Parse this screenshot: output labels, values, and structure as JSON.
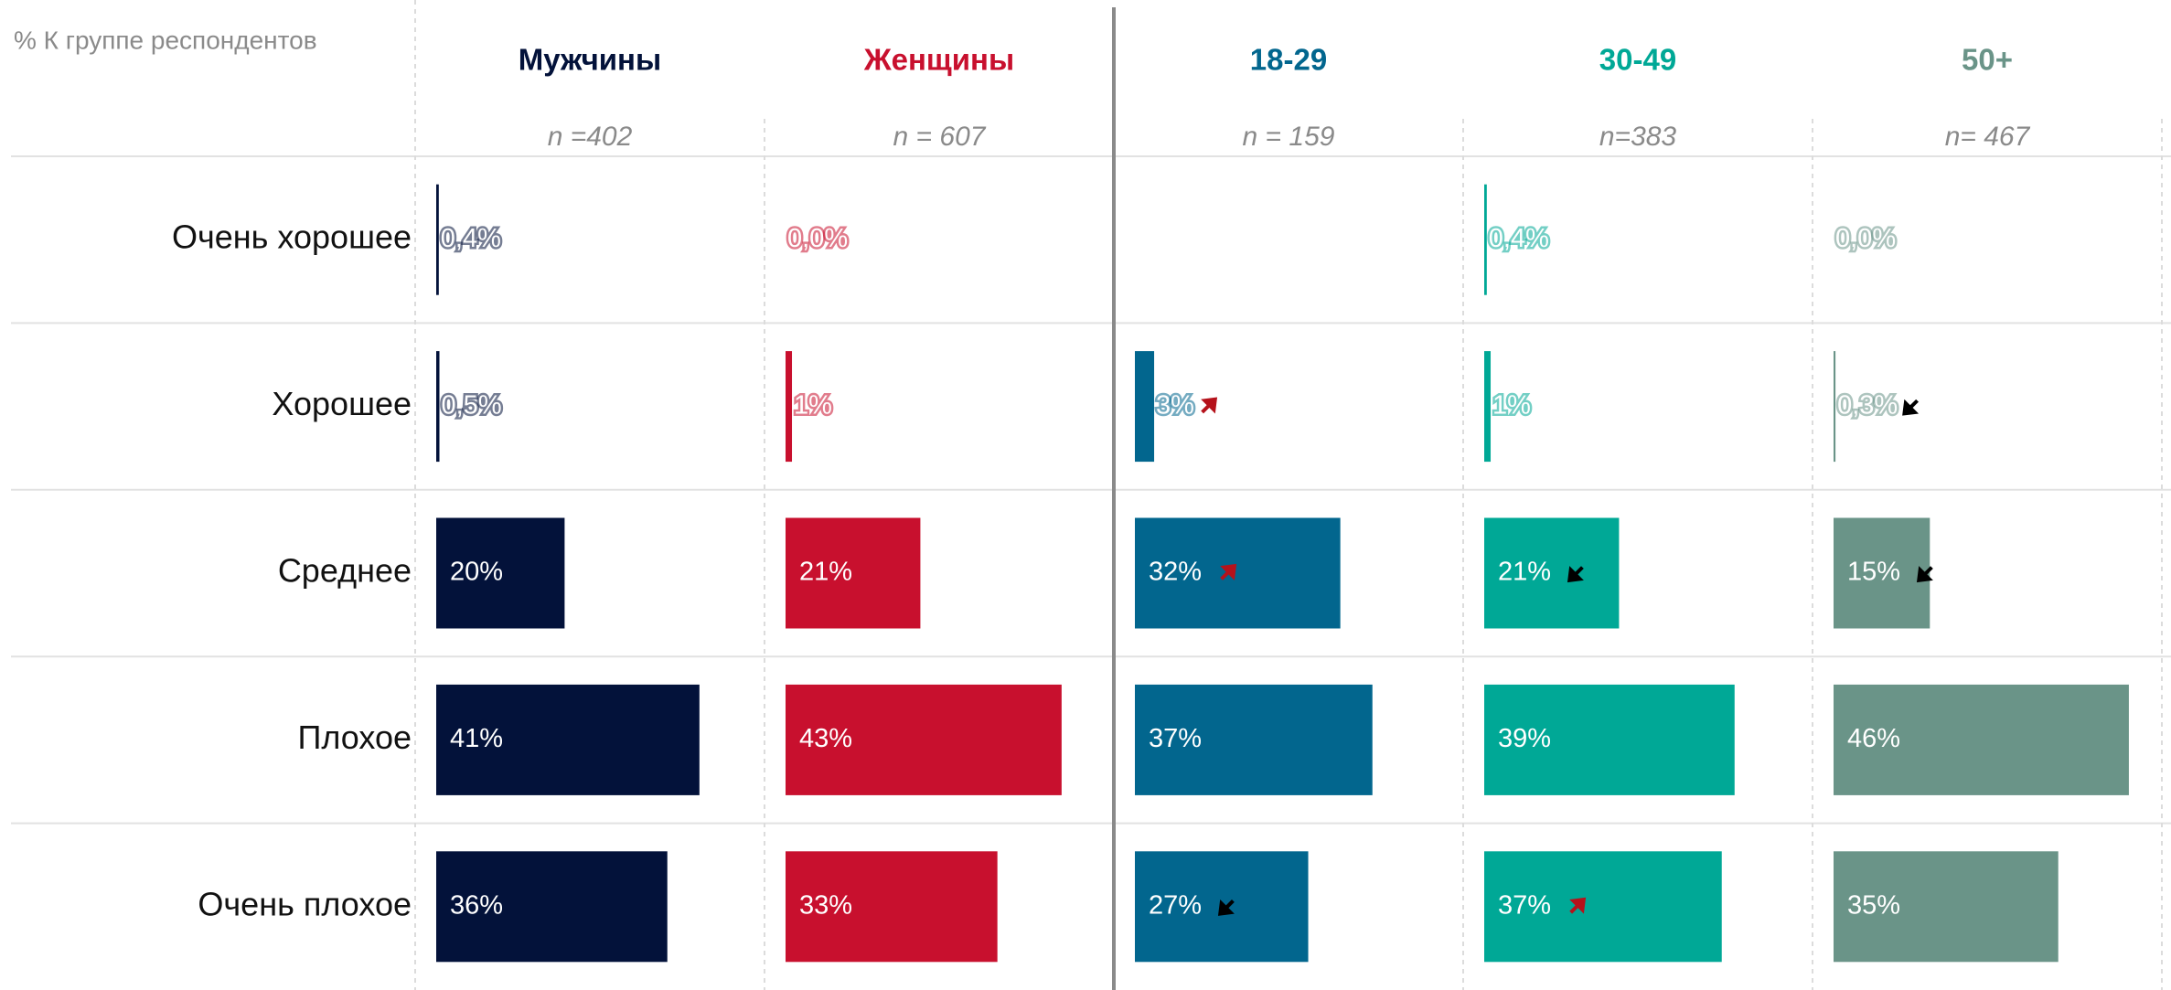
{
  "chart_data": {
    "type": "bar",
    "title": "% К группе респондентов",
    "categories": [
      "Очень хорошее",
      "Хорошее",
      "Среднее",
      "Плохое",
      "Очень плохое"
    ],
    "xlim": [
      0,
      50
    ],
    "series": [
      {
        "name": "Мужчины",
        "n": "n =402",
        "color": "#03123a",
        "values": [
          0.4,
          0.5,
          20,
          41,
          36
        ],
        "value_labels": [
          "0,4%",
          "0,5%",
          "20%",
          "41%",
          "36%"
        ],
        "trend": [
          null,
          null,
          null,
          null,
          null
        ]
      },
      {
        "name": "Женщины",
        "n": "n = 607",
        "color": "#c8102e",
        "values": [
          0,
          1,
          21,
          43,
          33
        ],
        "value_labels": [
          "0,0%",
          "1%",
          "21%",
          "43%",
          "33%"
        ],
        "trend": [
          null,
          null,
          null,
          null,
          null
        ]
      },
      {
        "name": "18-29",
        "n": "n = 159",
        "color": "#02668e",
        "values": [
          null,
          3,
          32,
          37,
          27
        ],
        "value_labels": [
          null,
          "3%",
          "32%",
          "37%",
          "27%"
        ],
        "trend": [
          null,
          "up",
          "up",
          null,
          "down"
        ]
      },
      {
        "name": "30-49",
        "n": "n=383",
        "color": "#00a896",
        "values": [
          0.4,
          1,
          21,
          39,
          37
        ],
        "value_labels": [
          "0,4%",
          "1%",
          "21%",
          "39%",
          "37%"
        ],
        "trend": [
          null,
          null,
          "down",
          null,
          "up"
        ]
      },
      {
        "name": "50+",
        "n": "n= 467",
        "color": "#6a9488",
        "values": [
          0,
          0.3,
          15,
          46,
          35
        ],
        "value_labels": [
          "0,0%",
          "0,3%",
          "15%",
          "46%",
          "35%"
        ],
        "trend": [
          null,
          "down",
          "down",
          null,
          null
        ]
      }
    ]
  }
}
